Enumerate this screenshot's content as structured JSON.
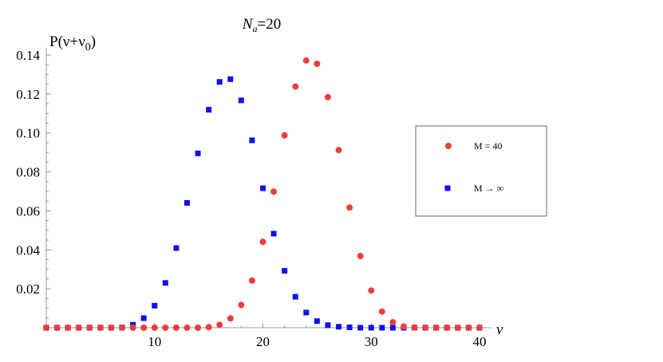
{
  "chart_data": {
    "type": "scatter",
    "title_prefix": "N",
    "title_sub": "a",
    "title_suffix": "=20",
    "ylabel": "P(ν+ν0)",
    "ylabel_main": "P(ν+ν",
    "ylabel_sub": "0",
    "ylabel_close": ")",
    "xlabel": "ν",
    "xlim": [
      0,
      40
    ],
    "ylim": [
      0,
      0.14
    ],
    "x_ticks": [
      10,
      20,
      30,
      40
    ],
    "y_ticks": [
      0.02,
      0.04,
      0.06,
      0.08,
      0.1,
      0.12,
      0.14
    ],
    "y_tick_labels": [
      "0.02",
      "0.04",
      "0.06",
      "0.08",
      "0.10",
      "0.12",
      "0.14"
    ],
    "grid": false,
    "legend_position": "right",
    "series": [
      {
        "name": "M = 40",
        "marker": "circle",
        "color": "#f03c3c",
        "x": [
          0,
          1,
          2,
          3,
          4,
          5,
          6,
          7,
          8,
          9,
          10,
          11,
          12,
          13,
          14,
          15,
          16,
          17,
          18,
          19,
          20,
          21,
          22,
          23,
          24,
          25,
          26,
          27,
          28,
          29,
          30,
          31,
          32,
          33,
          34,
          35,
          36,
          37,
          38,
          39,
          40
        ],
        "y": [
          0,
          0,
          0,
          0,
          0,
          0,
          0,
          0,
          0,
          0,
          0,
          0,
          0,
          0,
          0,
          0.0003,
          0.0015,
          0.0048,
          0.0117,
          0.0242,
          0.0441,
          0.0699,
          0.0988,
          0.1238,
          0.1372,
          0.1355,
          0.1184,
          0.0912,
          0.0617,
          0.0368,
          0.0191,
          0.0083,
          0.0028,
          0.0006,
          0.0001,
          0,
          0,
          0,
          0,
          0,
          0
        ]
      },
      {
        "name": "M → ∞",
        "marker": "square",
        "color": "#1010ee",
        "x": [
          0,
          1,
          2,
          3,
          4,
          5,
          6,
          7,
          8,
          9,
          10,
          11,
          12,
          13,
          14,
          15,
          16,
          17,
          18,
          19,
          20,
          21,
          22,
          23,
          24,
          25,
          26,
          27,
          28,
          29,
          30,
          31,
          32,
          33,
          34,
          35,
          36,
          37,
          38,
          39,
          40
        ],
        "y": [
          0,
          0,
          0,
          0,
          0,
          0,
          0,
          0.0001,
          0.0015,
          0.0049,
          0.0113,
          0.023,
          0.0409,
          0.0641,
          0.0895,
          0.1119,
          0.1262,
          0.1276,
          0.1167,
          0.0962,
          0.0716,
          0.0483,
          0.0292,
          0.0159,
          0.0078,
          0.0034,
          0.0013,
          0.0005,
          0.0002,
          0,
          0,
          0,
          0,
          0,
          0,
          0,
          0,
          0,
          0,
          0,
          0
        ]
      }
    ]
  }
}
